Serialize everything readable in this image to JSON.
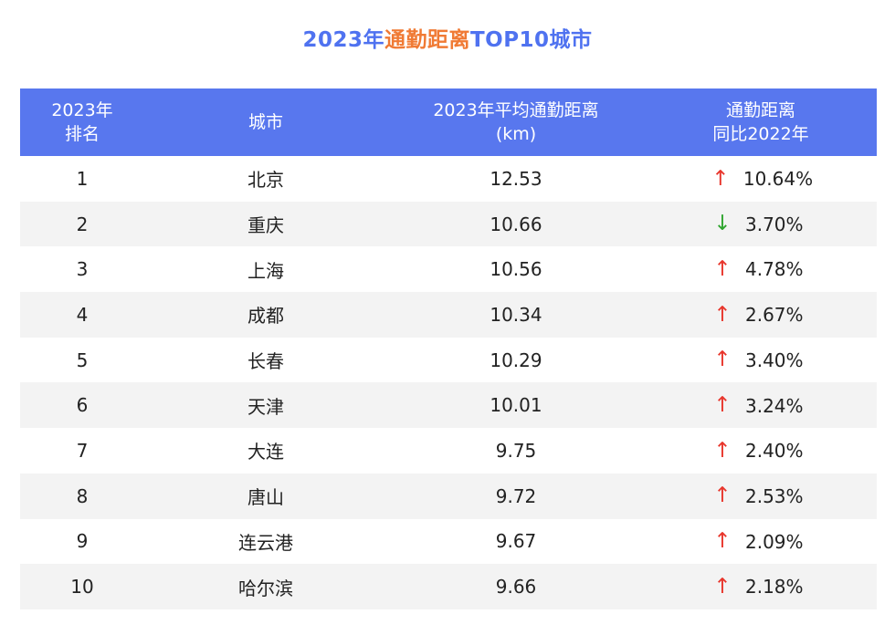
{
  "title": {
    "prefix": "2023年",
    "highlight": "通勤距离",
    "suffix": "TOP10城市"
  },
  "colors": {
    "title_blue": "#4f72f0",
    "title_orange": "#f07a34",
    "header_bg": "#5877ee",
    "up": "#e8352b",
    "down": "#2fa52f",
    "stripe": "#f3f3f3"
  },
  "headers": {
    "rank_line1": "2023年",
    "rank_line2": "排名",
    "city": "城市",
    "distance_line1": "2023年平均通勤距离",
    "distance_line2": "(km)",
    "change_line1": "通勤距离",
    "change_line2": "同比2022年"
  },
  "chart_data": {
    "type": "table",
    "title": "2023年通勤距离TOP10城市",
    "columns": [
      "2023年排名",
      "城市",
      "2023年平均通勤距离(km)",
      "通勤距离同比2022年"
    ],
    "rows": [
      {
        "rank": "1",
        "city": "北京",
        "distance": "12.53",
        "direction": "up",
        "arrow": "↑",
        "change": "10.64%"
      },
      {
        "rank": "2",
        "city": "重庆",
        "distance": "10.66",
        "direction": "down",
        "arrow": "↓",
        "change": "3.70%"
      },
      {
        "rank": "3",
        "city": "上海",
        "distance": "10.56",
        "direction": "up",
        "arrow": "↑",
        "change": "4.78%"
      },
      {
        "rank": "4",
        "city": "成都",
        "distance": "10.34",
        "direction": "up",
        "arrow": "↑",
        "change": "2.67%"
      },
      {
        "rank": "5",
        "city": "长春",
        "distance": "10.29",
        "direction": "up",
        "arrow": "↑",
        "change": "3.40%"
      },
      {
        "rank": "6",
        "city": "天津",
        "distance": "10.01",
        "direction": "up",
        "arrow": "↑",
        "change": "3.24%"
      },
      {
        "rank": "7",
        "city": "大连",
        "distance": "9.75",
        "direction": "up",
        "arrow": "↑",
        "change": "2.40%"
      },
      {
        "rank": "8",
        "city": "唐山",
        "distance": "9.72",
        "direction": "up",
        "arrow": "↑",
        "change": "2.53%"
      },
      {
        "rank": "9",
        "city": "连云港",
        "distance": "9.67",
        "direction": "up",
        "arrow": "↑",
        "change": "2.09%"
      },
      {
        "rank": "10",
        "city": "哈尔滨",
        "distance": "9.66",
        "direction": "up",
        "arrow": "↑",
        "change": "2.18%"
      }
    ]
  }
}
